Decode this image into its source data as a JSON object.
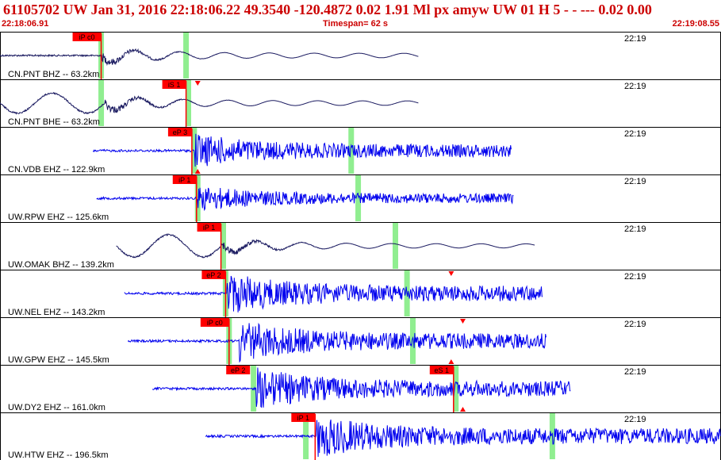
{
  "header": {
    "title": "61105702 UW Jan 31, 2016 22:18:06.22    49.3540 -120.4872  0.02 1.91 Ml px     amyw     UW 01 H    5  -  - ---  0.02 0.00",
    "start_time": "22:18:06.91",
    "timespan": "Timespan=  62 s",
    "end_time": "22:19:08.55"
  },
  "colors": {
    "accent": "#cc0000",
    "trace_dark": "#1a1a60",
    "trace_blue": "#0000ee",
    "marker_green": "#90ee90",
    "pick_red": "#ff0000"
  },
  "chart_data": {
    "type": "line",
    "x_range_s": [
      0,
      62
    ],
    "time_label": "22:19",
    "time_label_at_s": 54,
    "traces": [
      {
        "name": "CN.PNT BHZ -- 63.2km",
        "color": "dark",
        "start": 0,
        "end": 36.0,
        "onset": 8.7,
        "amp": 0.55,
        "lowfreq": true,
        "pre_wave": 0,
        "green": [
          8.7,
          16.0
        ],
        "picks": [
          {
            "label": "iP c0",
            "t": 8.7,
            "line": "red"
          }
        ],
        "tri": []
      },
      {
        "name": "CN.PNT BHE -- 63.2km",
        "color": "dark",
        "start": 0,
        "end": 36.0,
        "onset": 9.0,
        "amp": 0.55,
        "lowfreq": true,
        "pre_wave": 0.9,
        "green": [
          8.7,
          16.2
        ],
        "picks": [
          {
            "label": "iS 1",
            "t": 16.0,
            "line": "red"
          }
        ],
        "tri": [
          {
            "t": 17.0,
            "dir": "down"
          }
        ]
      },
      {
        "name": "CN.VDB EHZ -- 122.9km",
        "color": "blue",
        "start": 8.0,
        "end": 44.0,
        "onset": 16.7,
        "amp": 0.6,
        "lowfreq": false,
        "pre_wave": 0,
        "green": [
          16.7,
          30.2
        ],
        "picks": [
          {
            "label": "eP 3",
            "t": 16.5,
            "line": "red"
          }
        ],
        "tri": [
          {
            "t": 17.0,
            "dir": "up"
          }
        ]
      },
      {
        "name": "UW.RPW EHZ -- 125.6km",
        "color": "blue",
        "start": 8.3,
        "end": 44.2,
        "onset": 17.0,
        "amp": 0.45,
        "lowfreq": false,
        "pre_wave": 0,
        "green": [
          17.0,
          30.8
        ],
        "picks": [
          {
            "label": "iP 1",
            "t": 16.9,
            "line": "red"
          }
        ],
        "tri": []
      },
      {
        "name": "UW.OMAK BHZ -- 139.2km",
        "color": "dark",
        "start": 10.0,
        "end": 46.0,
        "onset": 19.2,
        "amp": 0.5,
        "lowfreq": true,
        "pre_wave": 1.0,
        "green": [
          19.2,
          34.0
        ],
        "picks": [
          {
            "label": "iP 1",
            "t": 19.0,
            "line": "red"
          }
        ],
        "tri": []
      },
      {
        "name": "UW.NEL EHZ -- 143.2km",
        "color": "blue",
        "start": 10.7,
        "end": 46.7,
        "onset": 19.5,
        "amp": 0.72,
        "lowfreq": false,
        "pre_wave": 0,
        "green": [
          19.4,
          35.0
        ],
        "picks": [
          {
            "label": "eP 2",
            "t": 19.4,
            "line": "red"
          }
        ],
        "tri": [
          {
            "t": 38.8,
            "dir": "down"
          }
        ]
      },
      {
        "name": "UW.GPW EHZ -- 145.5km",
        "color": "blue",
        "start": 11.0,
        "end": 47.0,
        "onset": 20.6,
        "amp": 0.72,
        "lowfreq": false,
        "pre_wave": 0,
        "green": [
          19.7,
          35.5
        ],
        "picks": [
          {
            "label": "iP c0",
            "t": 19.7,
            "line": "red"
          }
        ],
        "tri": [
          {
            "t": 38.8,
            "dir": "up"
          },
          {
            "t": 39.8,
            "dir": "down"
          }
        ]
      },
      {
        "name": "UW.DY2 EHZ -- 161.0km",
        "color": "blue",
        "start": 13.1,
        "end": 49.1,
        "onset": 22.0,
        "amp": 0.72,
        "lowfreq": false,
        "pre_wave": 0,
        "green": [
          21.8,
          39.2
        ],
        "picks": [
          {
            "label": "eP 2",
            "t": 21.5,
            "line": "none"
          },
          {
            "label": "eS 1",
            "t": 39.0,
            "line": "red"
          }
        ],
        "tri": [
          {
            "t": 39.8,
            "dir": "up"
          }
        ]
      },
      {
        "name": "UW.HTW EHZ -- 196.5km",
        "color": "blue",
        "start": 17.7,
        "end": 62.0,
        "onset": 27.2,
        "amp": 0.75,
        "lowfreq": false,
        "pre_wave": 0,
        "green": [
          26.3,
          47.5
        ],
        "picks": [
          {
            "label": "iP 1",
            "t": 27.1,
            "line": "red"
          }
        ],
        "tri": []
      }
    ]
  }
}
